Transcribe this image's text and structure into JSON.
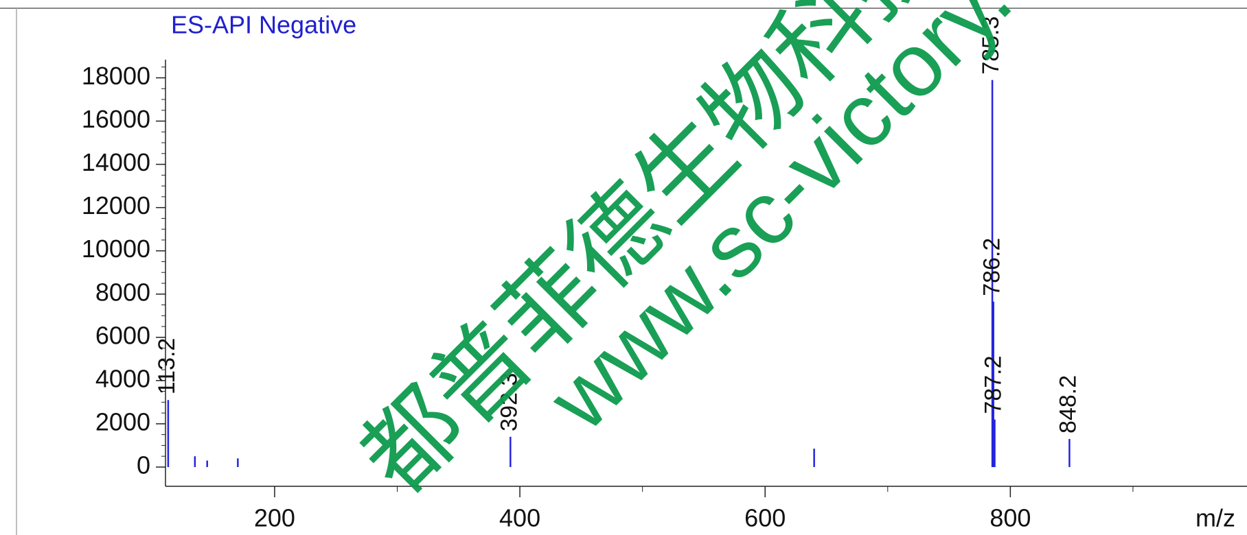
{
  "chart_data": {
    "type": "spectrum",
    "title": "ES-API Negative",
    "x_label": "m/z",
    "x": [
      113.2,
      135,
      145,
      170,
      392.3,
      640,
      785.3,
      786.2,
      787.2,
      848.2
    ],
    "values": [
      3100,
      500,
      300,
      400,
      1400,
      850,
      17900,
      7650,
      2200,
      1300
    ],
    "labels": [
      "113.2",
      null,
      null,
      null,
      "392.3",
      null,
      "785.3",
      "786.2",
      "787.2",
      "848.2"
    ],
    "color": "#2424e0",
    "xlim": [
      111,
      993
    ],
    "xticks": [
      200,
      400,
      600,
      800
    ],
    "ylim": [
      -890,
      18840
    ],
    "yticks": [
      0,
      2000,
      4000,
      6000,
      8000,
      10000,
      12000,
      14000,
      16000,
      18000
    ],
    "watermark": [
      "都普菲德生物科技有限",
      "www.sc-victory.com"
    ]
  }
}
